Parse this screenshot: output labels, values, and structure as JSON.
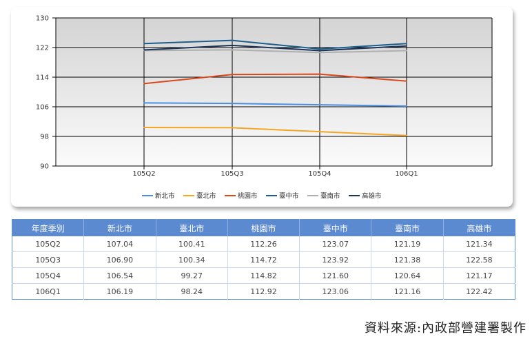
{
  "chart_data": {
    "type": "line",
    "categories": [
      "105Q2",
      "105Q3",
      "105Q4",
      "106Q1"
    ],
    "ylim": [
      90,
      130
    ],
    "yticks": [
      90,
      98,
      106,
      114,
      122,
      130
    ],
    "grid": true,
    "legend_position": "bottom",
    "series": [
      {
        "name": "新北市",
        "color": "#4a90e2",
        "values": [
          107.04,
          106.9,
          106.54,
          106.19
        ]
      },
      {
        "name": "臺北市",
        "color": "#f5a623",
        "values": [
          100.41,
          100.34,
          99.27,
          98.24
        ]
      },
      {
        "name": "桃園市",
        "color": "#d9481b",
        "values": [
          112.26,
          114.72,
          114.82,
          112.92
        ]
      },
      {
        "name": "臺中市",
        "color": "#1d5f8a",
        "values": [
          123.07,
          123.92,
          121.6,
          123.06
        ]
      },
      {
        "name": "臺南市",
        "color": "#b0b0b0",
        "values": [
          121.19,
          121.38,
          120.64,
          121.16
        ]
      },
      {
        "name": "高雄市",
        "color": "#1c3557",
        "values": [
          121.34,
          122.58,
          121.17,
          122.42
        ]
      }
    ]
  },
  "table": {
    "headers": [
      "年度季別",
      "新北市",
      "臺北市",
      "桃園市",
      "臺中市",
      "臺南市",
      "高雄市"
    ],
    "rows": [
      [
        "105Q2",
        "107.04",
        "100.41",
        "112.26",
        "123.07",
        "121.19",
        "121.34"
      ],
      [
        "105Q3",
        "106.90",
        "100.34",
        "114.72",
        "123.92",
        "121.38",
        "122.58"
      ],
      [
        "105Q4",
        "106.54",
        "99.27",
        "114.82",
        "121.60",
        "120.64",
        "121.17"
      ],
      [
        "106Q1",
        "106.19",
        "98.24",
        "112.92",
        "123.06",
        "121.16",
        "122.42"
      ]
    ]
  },
  "footer": {
    "source": "資料來源:內政部營建署製作"
  }
}
